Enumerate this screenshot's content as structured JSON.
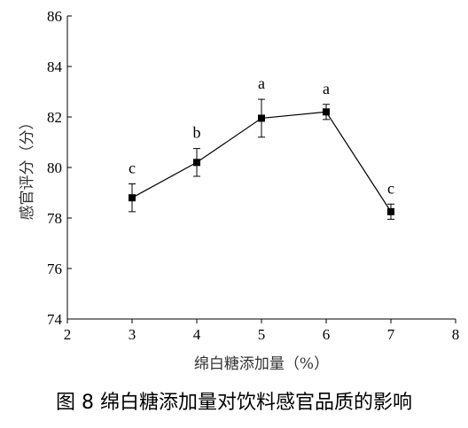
{
  "caption": "图 8  绵白糖添加量对饮料感官品质的影响",
  "chart_data": {
    "type": "line",
    "title": "",
    "xlabel": "绵白糖添加量（%）",
    "ylabel": "感官评分（分）",
    "xlim": [
      2,
      8
    ],
    "ylim": [
      74,
      86
    ],
    "x_ticks": [
      2,
      3,
      4,
      5,
      6,
      7,
      8
    ],
    "y_ticks": [
      74,
      76,
      78,
      80,
      82,
      84,
      86
    ],
    "grid": false,
    "series": [
      {
        "x": [
          3,
          4,
          5,
          6,
          7
        ],
        "y": [
          78.8,
          80.2,
          81.95,
          82.2,
          78.25
        ],
        "error": [
          0.55,
          0.55,
          0.75,
          0.3,
          0.3
        ],
        "labels": [
          "c",
          "b",
          "a",
          "a",
          "c"
        ],
        "marker": "square",
        "color": "#000000"
      }
    ]
  }
}
